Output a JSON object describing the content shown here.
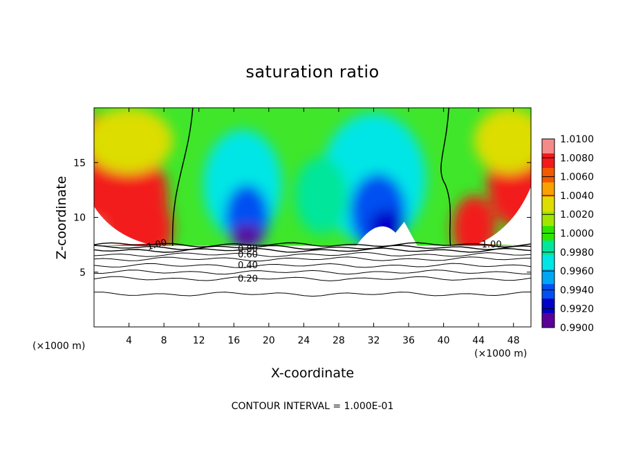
{
  "chart_data": {
    "type": "heatmap",
    "title": "saturation ratio",
    "xlabel": "X-coordinate",
    "ylabel": "Z-coordinate",
    "x_unit": "(×1000 m)",
    "y_unit": "(×1000 m)",
    "xlim": [
      0,
      50
    ],
    "ylim": [
      0,
      20
    ],
    "x_ticks": [
      4,
      8,
      12,
      16,
      20,
      24,
      28,
      32,
      36,
      40,
      44,
      48
    ],
    "y_ticks": [
      5,
      10,
      15
    ],
    "colorbar": {
      "levels": [
        "1.0100",
        "1.0080",
        "1.0060",
        "1.0040",
        "1.0020",
        "1.0000",
        "0.9980",
        "0.9960",
        "0.9940",
        "0.9920",
        "0.9900"
      ],
      "min": 0.99,
      "max": 1.01
    },
    "saturated_layer_base_z": 7.4,
    "contour_lines": [
      {
        "label": "1.00",
        "x": 7.2,
        "z": 7.5
      },
      {
        "label": "1.00",
        "x": 45.5,
        "z": 7.5
      },
      {
        "label": "0.80",
        "x": 17.6,
        "z": 7.1
      },
      {
        "label": "0.60",
        "x": 17.6,
        "z": 6.6
      },
      {
        "label": "0.40",
        "x": 17.6,
        "z": 5.6
      },
      {
        "label": "0.20",
        "x": 17.6,
        "z": 4.4
      }
    ],
    "subsaturated_levels_z": [
      7.5,
      7.25,
      7.0,
      6.6,
      6.2,
      5.6,
      5.0,
      4.4,
      3.0
    ],
    "footer": "CONTOUR INTERVAL = 1.000E-01"
  }
}
